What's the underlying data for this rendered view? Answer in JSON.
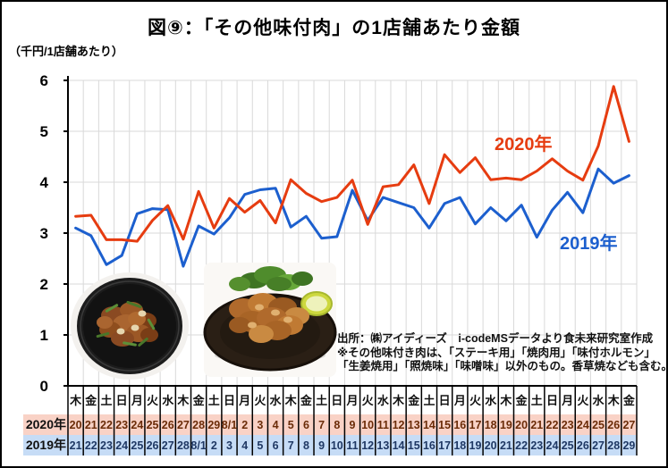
{
  "title": "図⑨：「その他味付肉」の1店舗あたり金額",
  "unit_label": "（千円/1店舗あたり）",
  "notes": {
    "source": "出所：㈱アイディーズ　i-codeMSデータより食未来研究室作成",
    "note_line1": "※その他味付き肉は、「ステーキ用」「焼肉用」「味付ホルモン」",
    "note_line2": "「生姜焼用」「照焼味」「味噌味」以外のもの。香草焼なども含む。"
  },
  "images": {
    "left": "seasoned-meat-plate-photo",
    "right": "fried-chicken-plate-photo"
  },
  "chart_data": {
    "type": "line",
    "title": "図⑨：「その他味付肉」の1店舗あたり金額",
    "ylabel": "千円/1店舗あたり",
    "ylim": [
      0,
      6
    ],
    "yticks": [
      0,
      1,
      2,
      3,
      4,
      5,
      6
    ],
    "grid": true,
    "legend_position": "inline-right",
    "colors": {
      "grid": "#d9d9d9",
      "axis": "#000000",
      "weekday_text": "#111111"
    },
    "weekdays": [
      "木",
      "金",
      "土",
      "日",
      "月",
      "火",
      "水",
      "木",
      "金",
      "土",
      "日",
      "月",
      "火",
      "水",
      "木",
      "金",
      "土",
      "日",
      "月",
      "火",
      "水",
      "木",
      "金",
      "土",
      "日",
      "月",
      "火",
      "水",
      "木",
      "金",
      "土",
      "日",
      "月",
      "火",
      "水",
      "木",
      "金"
    ],
    "series": [
      {
        "name": "2020年",
        "color": "#e63c10",
        "band_color": "#f9d2c6",
        "date_text_color": "#6b2c08",
        "dates": [
          "20",
          "21",
          "22",
          "23",
          "24",
          "25",
          "26",
          "27",
          "28",
          "29",
          "8/1",
          "2",
          "3",
          "4",
          "5",
          "6",
          "7",
          "8",
          "9",
          "10",
          "11",
          "12",
          "13",
          "14",
          "15",
          "16",
          "17",
          "18",
          "19",
          "20",
          "21",
          "22",
          "23",
          "24",
          "25",
          "26",
          "27"
        ],
        "values": [
          3.33,
          3.35,
          2.87,
          2.87,
          2.84,
          3.25,
          3.54,
          2.88,
          3.82,
          3.1,
          3.68,
          3.41,
          3.64,
          3.2,
          4.05,
          3.78,
          3.62,
          3.7,
          4.04,
          3.17,
          3.91,
          3.95,
          4.34,
          3.58,
          4.54,
          4.19,
          4.48,
          4.05,
          4.08,
          4.05,
          4.22,
          4.46,
          4.22,
          4.04,
          4.71,
          5.88,
          4.8
        ]
      },
      {
        "name": "2019年",
        "color": "#1c5fce",
        "band_color": "#c6dcf6",
        "date_text_color": "#1f3864",
        "dates": [
          "21",
          "22",
          "23",
          "24",
          "25",
          "26",
          "27",
          "28",
          "8/1",
          "2",
          "3",
          "4",
          "5",
          "6",
          "7",
          "8",
          "9",
          "10",
          "11",
          "12",
          "13",
          "14",
          "15",
          "16",
          "17",
          "18",
          "19",
          "20",
          "21",
          "22",
          "23",
          "24",
          "25",
          "26",
          "27",
          "28",
          "29"
        ],
        "values": [
          3.1,
          2.95,
          2.38,
          2.56,
          3.38,
          3.48,
          3.46,
          2.35,
          3.14,
          2.98,
          3.3,
          3.76,
          3.85,
          3.88,
          3.12,
          3.33,
          2.9,
          2.93,
          3.84,
          3.25,
          3.7,
          3.6,
          3.5,
          3.1,
          3.58,
          3.7,
          3.18,
          3.5,
          3.24,
          3.55,
          2.92,
          3.45,
          3.8,
          3.4,
          4.26,
          3.98,
          4.13
        ]
      }
    ]
  }
}
